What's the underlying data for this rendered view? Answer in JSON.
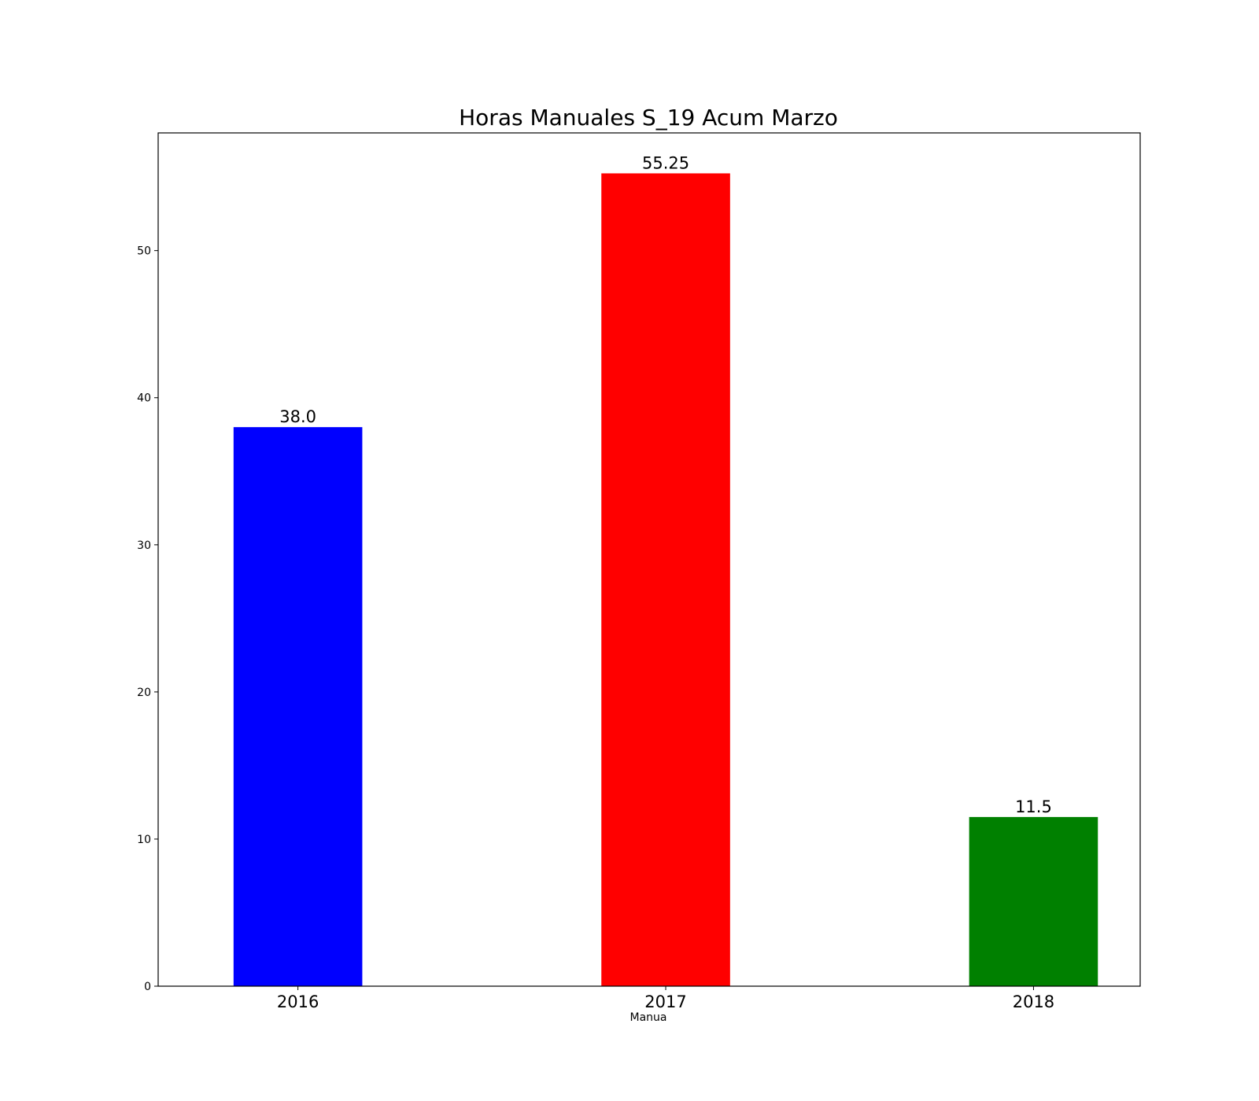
{
  "chart_data": {
    "type": "bar",
    "title": "Horas Manuales S_19 Acum Marzo",
    "xlabel": "Manua",
    "ylabel": "",
    "categories": [
      "2016",
      "2017",
      "2018"
    ],
    "values": [
      38.0,
      55.25,
      11.5
    ],
    "value_labels": [
      "38.0",
      "55.25",
      "11.5"
    ],
    "colors": [
      "#0000ff",
      "#ff0000",
      "#008000"
    ],
    "ylim": [
      0,
      58
    ],
    "yticks": [
      0,
      10,
      20,
      30,
      40,
      50
    ],
    "grid": false,
    "legend": "none"
  }
}
